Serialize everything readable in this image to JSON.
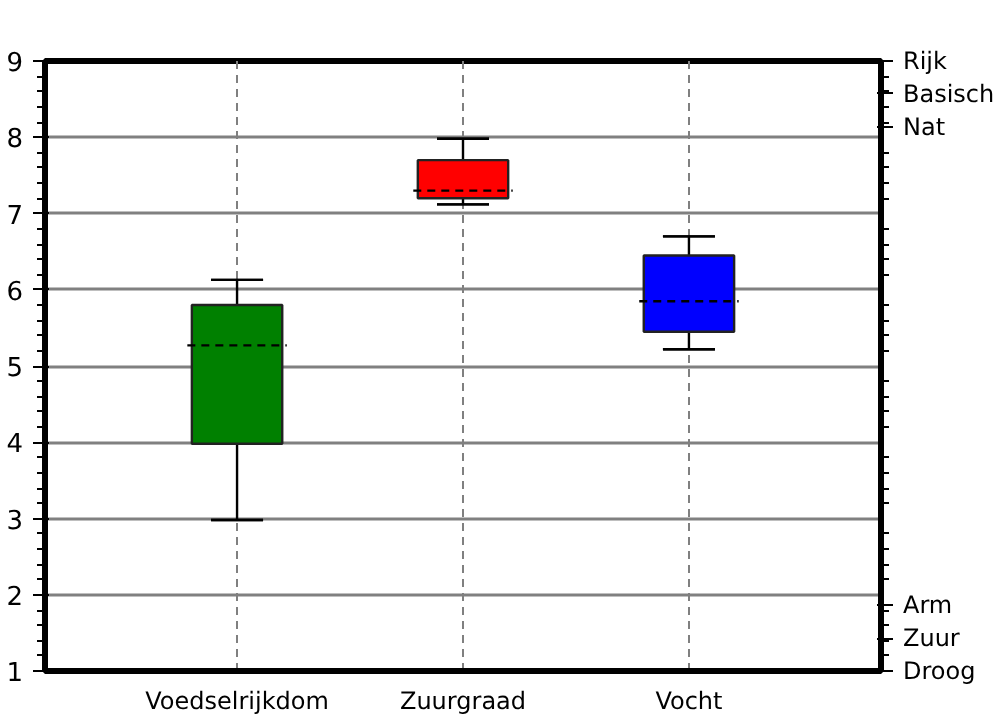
{
  "chart_data": {
    "type": "box",
    "categories": [
      "Voedselrijkdom",
      "Zuurgraad",
      "Vocht"
    ],
    "colors": [
      "#008000",
      "#ff0000",
      "#0000ff"
    ],
    "boxes": [
      {
        "low": 2.98,
        "q1": 3.98,
        "median": 5.27,
        "q3": 5.8,
        "high": 6.13
      },
      {
        "low": 7.12,
        "q1": 7.2,
        "median": 7.3,
        "q3": 7.7,
        "high": 7.98
      },
      {
        "low": 5.22,
        "q1": 5.45,
        "median": 5.85,
        "q3": 6.45,
        "high": 6.7
      }
    ],
    "ylim": [
      1,
      9
    ],
    "yticks": [
      1,
      2,
      3,
      4,
      5,
      6,
      7,
      8,
      9
    ],
    "annotations": [
      "Rijk",
      "Basisch",
      "Nat",
      "Arm",
      "Zuur",
      "Droog"
    ],
    "grid": true
  }
}
